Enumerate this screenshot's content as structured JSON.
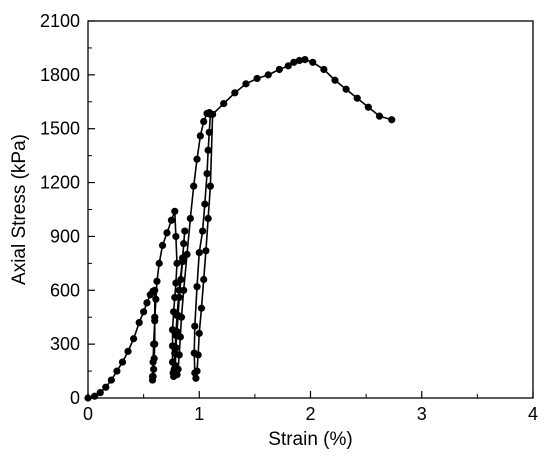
{
  "chart_data": {
    "type": "line",
    "title": "",
    "xlabel": "Strain (%)",
    "ylabel": "Axial Stress (kPa)",
    "xlim": [
      0,
      4
    ],
    "ylim": [
      0,
      2100
    ],
    "x_ticks": [
      0,
      1,
      2,
      3,
      4
    ],
    "y_ticks": [
      0,
      300,
      600,
      900,
      1200,
      1500,
      1800,
      2100
    ],
    "x_tick_labels": [
      "0",
      "1",
      "2",
      "3",
      "4"
    ],
    "y_tick_labels": [
      "0",
      "300",
      "600",
      "900",
      "1200",
      "1500",
      "1800",
      "2100"
    ],
    "grid": false,
    "legend": "none",
    "line_color": "#000000",
    "marker": "filled-circle",
    "series": [
      {
        "x": [
          0.0,
          0.06,
          0.11,
          0.16,
          0.21,
          0.26,
          0.31,
          0.36,
          0.41,
          0.46,
          0.5,
          0.53,
          0.56,
          0.585,
          0.6,
          0.6,
          0.6,
          0.595,
          0.59,
          0.585,
          0.58,
          0.58,
          0.585,
          0.59,
          0.6,
          0.61,
          0.62,
          0.64,
          0.67,
          0.71,
          0.75,
          0.78,
          0.79,
          0.8,
          0.79,
          0.78,
          0.77,
          0.76,
          0.76,
          0.76,
          0.765,
          0.77,
          0.775,
          0.78,
          0.79,
          0.8,
          0.82,
          0.85,
          0.87,
          0.86,
          0.85,
          0.835,
          0.82,
          0.81,
          0.8,
          0.79,
          0.785,
          0.79,
          0.8,
          0.81,
          0.82,
          0.83,
          0.84,
          0.86,
          0.89,
          0.92,
          0.95,
          0.98,
          1.01,
          1.04,
          1.07,
          1.09,
          1.1,
          1.09,
          1.08,
          1.07,
          1.05,
          1.03,
          1.0,
          0.98,
          0.96,
          0.955,
          0.96,
          0.97,
          0.98,
          0.99,
          1.0,
          1.02,
          1.04,
          1.06,
          1.08,
          1.1,
          1.12,
          1.22,
          1.32,
          1.42,
          1.52,
          1.62,
          1.72,
          1.8,
          1.85,
          1.9,
          1.95,
          2.02,
          2.12,
          2.22,
          2.32,
          2.42,
          2.52,
          2.62,
          2.73
        ],
        "y": [
          0,
          10,
          30,
          60,
          100,
          150,
          200,
          260,
          330,
          420,
          480,
          530,
          575,
          595,
          600,
          450,
          300,
          220,
          160,
          120,
          100,
          120,
          200,
          300,
          430,
          550,
          650,
          750,
          850,
          920,
          990,
          1040,
          900,
          750,
          640,
          560,
          480,
          380,
          290,
          200,
          140,
          120,
          160,
          250,
          350,
          460,
          600,
          780,
          930,
          860,
          760,
          660,
          560,
          460,
          370,
          280,
          180,
          140,
          130,
          160,
          240,
          340,
          450,
          600,
          800,
          1000,
          1180,
          1330,
          1460,
          1540,
          1585,
          1590,
          1580,
          1480,
          1380,
          1250,
          1080,
          930,
          810,
          620,
          400,
          250,
          140,
          110,
          150,
          240,
          360,
          500,
          660,
          820,
          1000,
          1180,
          1580,
          1640,
          1700,
          1750,
          1780,
          1800,
          1830,
          1850,
          1870,
          1880,
          1885,
          1870,
          1830,
          1770,
          1720,
          1670,
          1620,
          1570,
          1550
        ]
      }
    ]
  }
}
